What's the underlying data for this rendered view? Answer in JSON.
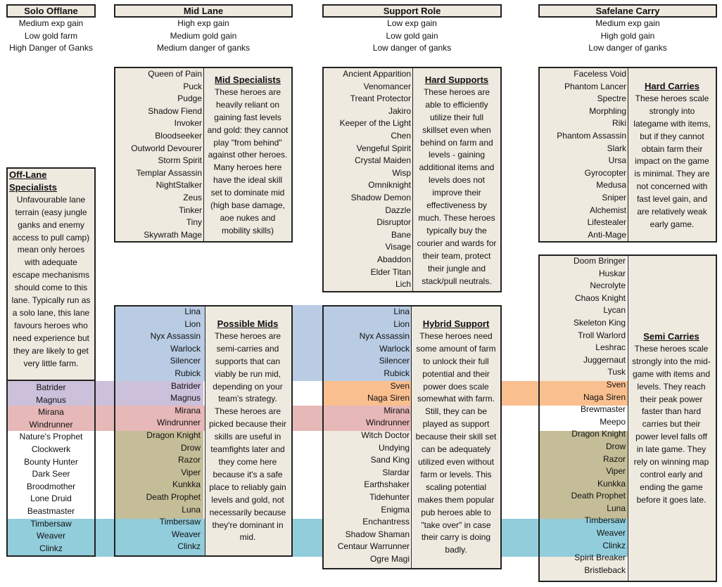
{
  "headers": {
    "solo": {
      "title": "Solo Offlane",
      "lines": [
        "Medium exp gain",
        "Low gold farm",
        "High Danger of Ganks"
      ]
    },
    "mid": {
      "title": "Mid Lane",
      "lines": [
        "High exp gain",
        "Medium gold gain",
        "Medium danger of ganks"
      ]
    },
    "support": {
      "title": "Support Role",
      "lines": [
        "Low exp gain",
        "Low gold gain",
        "Low danger of ganks"
      ]
    },
    "safe": {
      "title": "Safelane Carry",
      "lines": [
        "Medium exp gain",
        "High gold gain",
        "Low danger of ganks"
      ]
    }
  },
  "mid_specialists": {
    "heroes": [
      "Queen of Pain",
      "Puck",
      "Pudge",
      "Shadow Fiend",
      "Invoker",
      "Bloodseeker",
      "Outworld Devourer",
      "Storm Spirit",
      "Templar Assassin",
      "NightStalker",
      "Zeus",
      "Tinker",
      "Tiny",
      "Skywrath Mage"
    ],
    "title": "Mid Specialists",
    "text": [
      "These heroes are",
      "heavily reliant on",
      "gaining fast levels",
      "and gold: they cannot",
      "play \"from behind\"",
      "against other heroes.",
      "Many heroes here",
      "have the ideal skill",
      "set to dominate mid",
      "(high base damage,",
      "aoe nukes and",
      "mobility skills)"
    ]
  },
  "hard_supports": {
    "heroes": [
      "Ancient Apparition",
      "Venomancer",
      "Treant Protector",
      "Jakiro",
      "Keeper of the Light",
      "Chen",
      "Vengeful Spirit",
      "Crystal Maiden",
      "Wisp",
      "Omniknight",
      "Shadow Demon",
      "Dazzle",
      "Disruptor",
      "Bane",
      "Visage",
      "Abaddon",
      "Elder Titan",
      "Lich"
    ],
    "title": "Hard Supports",
    "text": [
      "These heroes are",
      "able to efficiently",
      "utilize their full",
      "skillset even when",
      "behind on farm and",
      "levels - gaining",
      "additional items and",
      "levels does not",
      "improve their",
      "effectiveness by",
      "much. These heroes",
      "typically buy the",
      "courier and wards for",
      "their team, protect",
      "their jungle and",
      "stack/pull neutrals."
    ]
  },
  "hard_carries": {
    "heroes": [
      "Faceless Void",
      "Phantom Lancer",
      "Spectre",
      "Morphling",
      "Riki",
      "Phantom Assassin",
      "Slark",
      "Ursa",
      "Gyrocopter",
      "Medusa",
      "Sniper",
      "Alchemist",
      "Lifestealer",
      "Anti-Mage"
    ],
    "title": "Hard Carries",
    "text": [
      "These heroes scale",
      "strongly into",
      "lategame with items,",
      "but if they cannot",
      "obtain farm their",
      "impact on the game",
      "is minimal. They are",
      "not concerned with",
      "fast level gain, and",
      "are relatively weak",
      "early game."
    ]
  },
  "offlane_specialists": {
    "title": "Off-Lane Specialists",
    "text": [
      "Unfavourable lane",
      "terrain (easy jungle",
      "ganks and enemy",
      "access to pull camp)",
      "mean only heroes",
      "with adequate",
      "escape mechanisms",
      "should come to this",
      "lane. Typically run as",
      "a solo lane, this lane",
      "favours heroes who",
      "need experience but",
      "they are likely to get",
      "very little farm."
    ],
    "heroes": [
      "Batrider",
      "Magnus",
      "Mirana",
      "Windrunner",
      "Nature's Prophet",
      "Clockwerk",
      "Bounty Hunter",
      "Dark Seer",
      "Broodmother",
      "Lone Druid",
      "Beastmaster",
      "Timbersaw",
      "Weaver",
      "Clinkz"
    ]
  },
  "possible_mids": {
    "heroes": [
      "Lina",
      "Lion",
      "Nyx Assassin",
      "Warlock",
      "Silencer",
      "Rubick",
      "Batrider",
      "Magnus",
      "Mirana",
      "Windrunner",
      "Dragon Knight",
      "Drow",
      "Razor",
      "Viper",
      "Kunkka",
      "Death Prophet",
      "Luna",
      "Timbersaw",
      "Weaver",
      "Clinkz"
    ],
    "title": "Possible Mids",
    "text": [
      "These heroes are",
      "semi-carries and",
      "supports that can",
      "viably be run mid,",
      "depending on your",
      "team's strategy.",
      "These heroes are",
      "picked because their",
      "skills are useful in",
      "teamfights later and",
      "they come here",
      "because it's a safe",
      "place to reliably gain",
      "levels and gold, not",
      "necessarily because",
      "they're dominant in",
      "mid."
    ]
  },
  "hybrid_support": {
    "heroes": [
      "Lina",
      "Lion",
      "Nyx Assassin",
      "Warlock",
      "Silencer",
      "Rubick",
      "Sven",
      "Naga Siren",
      "Mirana",
      "Windrunner",
      "Witch Doctor",
      "Undying",
      "Sand King",
      "Slardar",
      "Earthshaker",
      "Tidehunter",
      "Enigma",
      "Enchantress",
      "Shadow Shaman",
      "Centaur Warrunner",
      "Ogre Magi"
    ],
    "title": "Hybrid Support",
    "text": [
      "These heroes need",
      "some amount of farm",
      "to unlock their full",
      "potential and their",
      "power does scale",
      "somewhat with farm.",
      "Still, they can be",
      "played as support",
      "because their skill set",
      "can be adequately",
      "utilized even without",
      "farm or levels. This",
      "scaling potential",
      "makes them popular",
      "pub heroes able to",
      "\"take over\" in case",
      "their carry is doing",
      "badly."
    ]
  },
  "semi_carries": {
    "heroes": [
      "Doom Bringer",
      "Huskar",
      "Necrolyte",
      "Chaos Knight",
      "Lycan",
      "Skeleton King",
      "Troll Warlord",
      "Leshrac",
      "Juggernaut",
      "Tusk",
      "Sven",
      "Naga Siren",
      "Brewmaster",
      "Meepo",
      "Dragon Knight",
      "Drow",
      "Razor",
      "Viper",
      "Kunkka",
      "Death Prophet",
      "Luna",
      "Timbersaw",
      "Weaver",
      "Clinkz",
      "Spirit Breaker",
      "Bristleback"
    ],
    "title": "Semi Carries",
    "text": [
      "These heroes scale",
      "strongly into the mid-",
      "game with items and",
      "levels. They reach",
      "their peak power",
      "faster than hard",
      "carries but their",
      "power level falls off",
      "in late game. They",
      "rely on winning map",
      "control early and",
      "ending the game",
      "before it goes late."
    ]
  },
  "colors": {
    "cream": "#eeeae0",
    "blue": "#b9cce4",
    "purple": "#ccc0da",
    "red": "#e6b8b7",
    "orange": "#fabf8f",
    "olive": "#c4bd97",
    "teal": "#92cddc"
  }
}
